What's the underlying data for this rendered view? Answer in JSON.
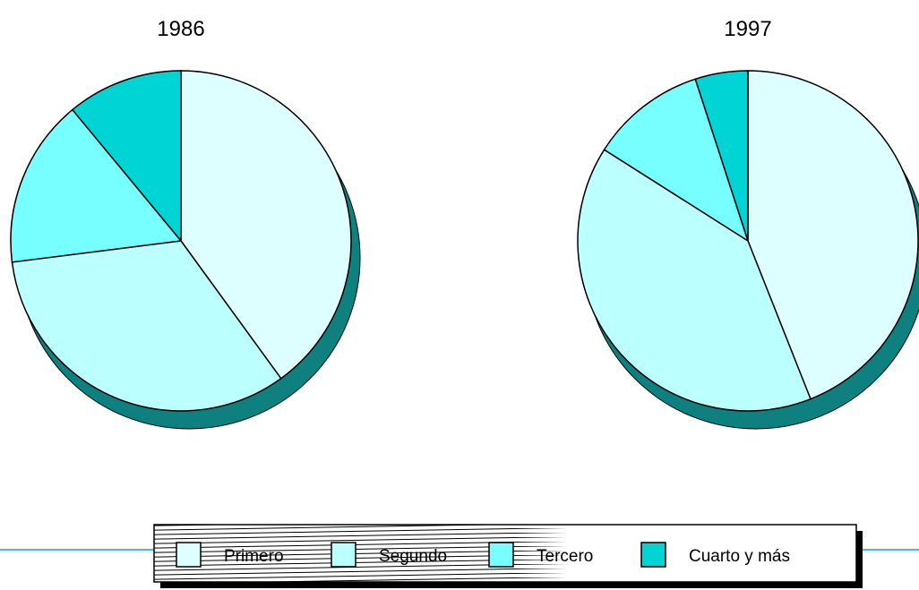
{
  "chart_data": [
    {
      "type": "pie",
      "title": "1986",
      "categories": [
        "Primero",
        "Segundo",
        "Tercero",
        "Cuarto y más"
      ],
      "values": [
        40,
        33,
        16,
        11
      ],
      "unit": "%"
    },
    {
      "type": "pie",
      "title": "1997",
      "categories": [
        "Primero",
        "Segundo",
        "Tercero",
        "Cuarto y más"
      ],
      "values": [
        44,
        40,
        11,
        5
      ],
      "unit": "%"
    }
  ],
  "legend": {
    "items": [
      {
        "label": "Primero",
        "color": "#DDFFFF"
      },
      {
        "label": "Segundo",
        "color": "#BBFFFF"
      },
      {
        "label": "Tercero",
        "color": "#77FFFF"
      },
      {
        "label": "Cuarto y más",
        "color": "#00D4D4"
      }
    ]
  },
  "colors": {
    "slice_colors": [
      "#DDFFFF",
      "#BBFFFF",
      "#77FFFF",
      "#00D4D4"
    ],
    "shadow": "#0E8080",
    "rule_line": "#00AADD"
  }
}
